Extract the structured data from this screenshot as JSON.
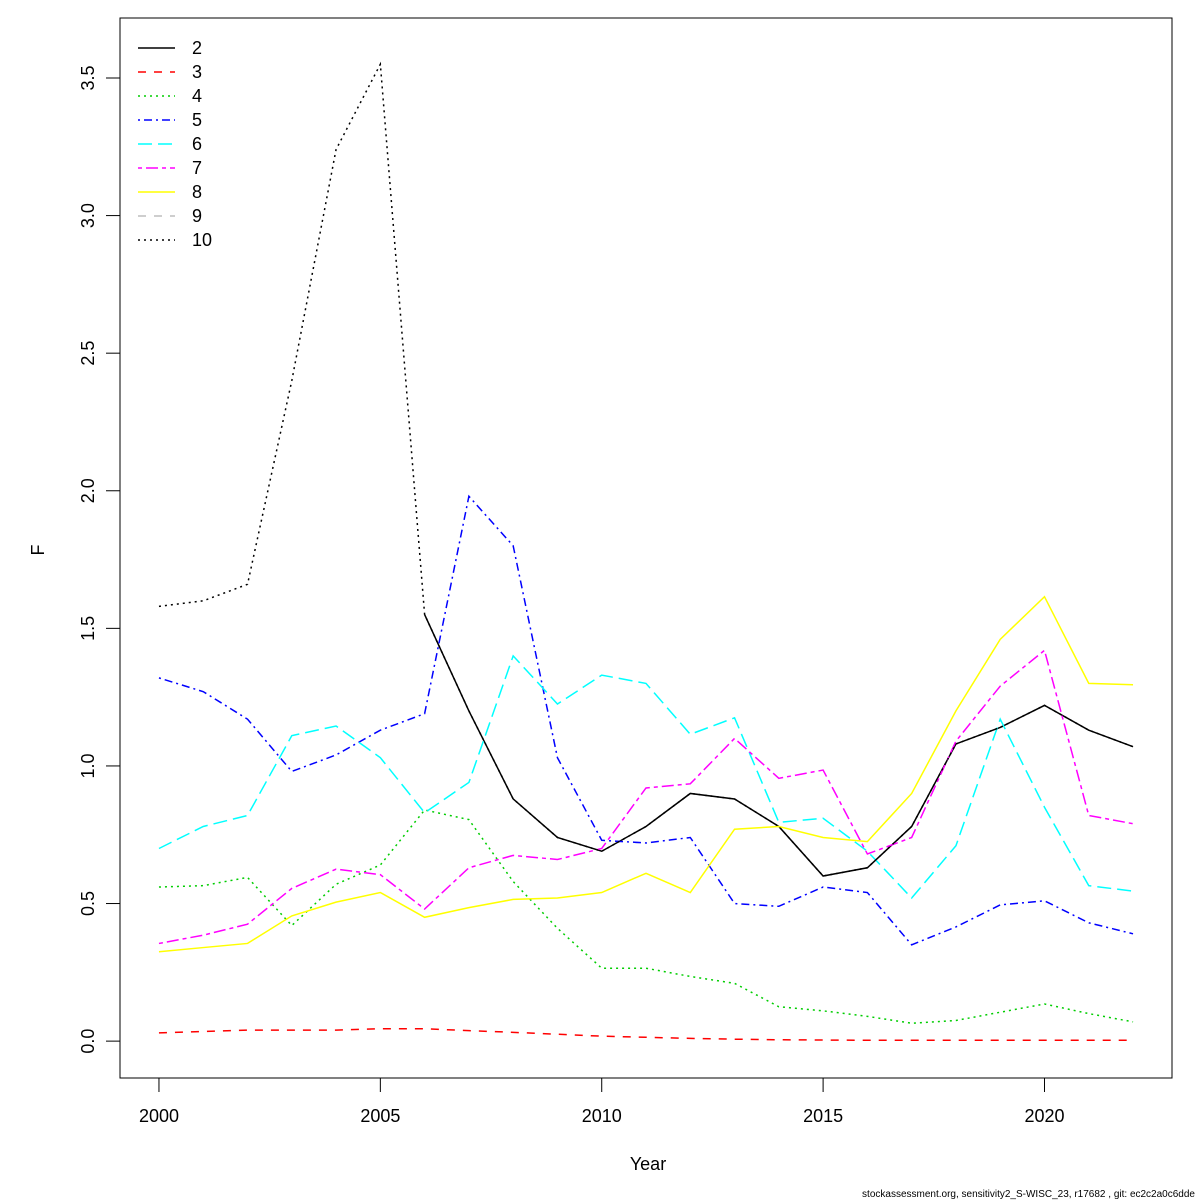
{
  "chart_data": {
    "type": "line",
    "xlabel": "Year",
    "ylabel": "F",
    "footnote": "stockassessment.org, sensitivity2_S-WISC_23, r17682 , git: ec2c2a0c6dde",
    "x": [
      2000,
      2001,
      2002,
      2003,
      2004,
      2005,
      2006,
      2007,
      2008,
      2009,
      2010,
      2011,
      2012,
      2013,
      2014,
      2015,
      2016,
      2017,
      2018,
      2019,
      2020,
      2021,
      2022
    ],
    "xlim": [
      1999.12,
      2022.88
    ],
    "xticks": [
      2000,
      2005,
      2010,
      2015,
      2020
    ],
    "ylim": [
      -0.134,
      3.718
    ],
    "yticks": [
      {
        "value": 0,
        "label": "0.0"
      },
      0.5,
      {
        "value": 1,
        "label": "1.0"
      },
      1.5,
      {
        "value": 2,
        "label": "2.0"
      },
      2.5,
      {
        "value": 3,
        "label": "3.0"
      },
      3.5
    ],
    "legend": "top-left",
    "series": [
      {
        "name": "2",
        "color": "#000000",
        "linestyle": "solid",
        "values": [
          null,
          null,
          null,
          null,
          null,
          null,
          1.55,
          1.2,
          0.88,
          0.74,
          0.69,
          0.78,
          0.9,
          0.88,
          0.78,
          0.6,
          0.63,
          0.78,
          1.08,
          1.14,
          1.22,
          1.13,
          1.07
        ]
      },
      {
        "name": "3",
        "color": "#ff0000",
        "linestyle": "dashed",
        "values": [
          0.03,
          0.035,
          0.04,
          0.04,
          0.04,
          0.045,
          0.045,
          0.038,
          0.032,
          0.025,
          0.018,
          0.014,
          0.01,
          0.007,
          0.005,
          0.004,
          0.003,
          0.003,
          0.003,
          0.003,
          0.003,
          0.003,
          0.003
        ]
      },
      {
        "name": "4",
        "color": "#00cd00",
        "linestyle": "dotted",
        "values": [
          0.56,
          0.565,
          0.595,
          0.42,
          0.57,
          0.64,
          0.84,
          0.805,
          0.58,
          0.41,
          0.265,
          0.265,
          0.235,
          0.21,
          0.125,
          0.11,
          0.09,
          0.065,
          0.075,
          0.105,
          0.135,
          0.1,
          0.07
        ]
      },
      {
        "name": "5",
        "color": "#0000ff",
        "linestyle": "dotdash",
        "values": [
          1.32,
          1.27,
          1.17,
          0.98,
          1.04,
          1.13,
          1.19,
          1.98,
          1.8,
          1.03,
          0.73,
          0.72,
          0.74,
          0.5,
          0.49,
          0.56,
          0.54,
          0.35,
          0.415,
          0.495,
          0.51,
          0.43,
          0.39
        ]
      },
      {
        "name": "6",
        "color": "#00ffff",
        "linestyle": "longdash",
        "values": [
          0.7,
          0.78,
          0.82,
          1.11,
          1.145,
          1.03,
          0.83,
          0.94,
          1.4,
          1.225,
          1.33,
          1.3,
          1.115,
          1.175,
          0.795,
          0.81,
          0.69,
          0.52,
          0.71,
          1.17,
          0.85,
          0.565,
          0.545
        ]
      },
      {
        "name": "7",
        "color": "#ff00ff",
        "linestyle": "twodash",
        "values": [
          0.355,
          0.385,
          0.425,
          0.555,
          0.625,
          0.605,
          0.48,
          0.63,
          0.675,
          0.66,
          0.7,
          0.92,
          0.935,
          1.1,
          0.955,
          0.985,
          0.68,
          0.74,
          1.09,
          1.29,
          1.42,
          0.82,
          0.79
        ]
      },
      {
        "name": "8",
        "color": "#ffff00",
        "linestyle": "solid",
        "values": [
          0.325,
          0.34,
          0.355,
          0.455,
          0.505,
          0.54,
          0.45,
          0.485,
          0.515,
          0.52,
          0.54,
          0.61,
          0.54,
          0.77,
          0.78,
          0.74,
          0.725,
          0.9,
          1.2,
          1.46,
          1.615,
          1.3,
          1.295
        ]
      },
      {
        "name": "9",
        "color": "#bebebe",
        "linestyle": "dashed",
        "values": [
          null,
          null,
          null,
          null,
          null,
          null,
          null,
          null,
          null,
          null,
          null,
          null,
          null,
          null,
          null,
          null,
          null,
          null,
          null,
          null,
          null,
          null,
          null
        ]
      },
      {
        "name": "10",
        "color": "#000000",
        "linestyle": "dotted",
        "values": [
          1.58,
          1.6,
          1.66,
          2.4,
          3.24,
          3.55,
          1.55,
          1.2,
          0.88,
          0.74,
          0.69,
          0.78,
          0.9,
          0.88,
          0.78,
          0.6,
          0.63,
          0.78,
          1.08,
          1.14,
          1.22,
          1.13,
          1.07
        ]
      }
    ]
  }
}
